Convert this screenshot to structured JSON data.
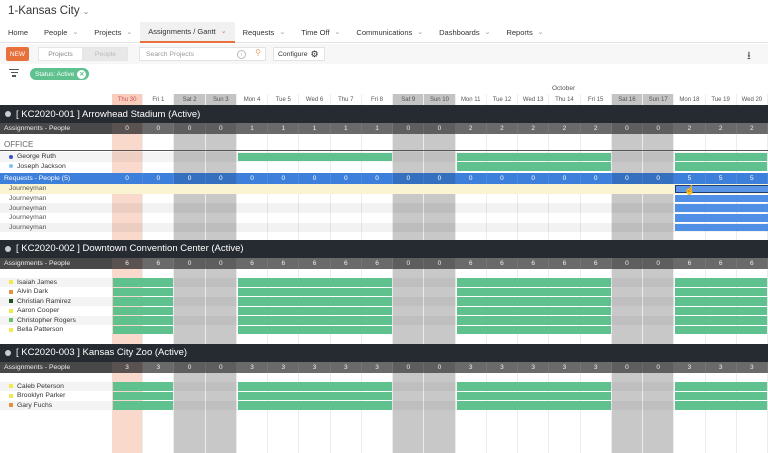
{
  "app": {
    "title": "1-Kansas City",
    "title_chevron": "⌄"
  },
  "nav": {
    "items": [
      {
        "label": "Home",
        "chevron": false
      },
      {
        "label": "People",
        "chevron": true
      },
      {
        "label": "Projects",
        "chevron": true
      },
      {
        "label": "Assignments / Gantt",
        "chevron": true,
        "active": true
      },
      {
        "label": "Requests",
        "chevron": true
      },
      {
        "label": "Time Off",
        "chevron": true
      },
      {
        "label": "Communications",
        "chevron": true
      },
      {
        "label": "Dashboards",
        "chevron": true
      },
      {
        "label": "Reports",
        "chevron": true
      }
    ]
  },
  "toolbar": {
    "new_label": "NEW",
    "view_projects": "Projects",
    "view_people": "People",
    "search_placeholder": "Search Projects",
    "configure_label": "Configure",
    "icons": {
      "help": "help-circle-icon",
      "search": "search-icon",
      "gear": "gear-icon",
      "download": "download-icon"
    }
  },
  "filter": {
    "chip_label": "Status: Active",
    "icon": "filter-icon"
  },
  "colors": {
    "accent": "#e8703a",
    "green": "#5ec18e",
    "blue": "#3d80db",
    "project_header": "#262a31",
    "today": "#f8d3c5",
    "weekend": "#c4c4c4"
  },
  "calendar": {
    "month": "October",
    "days": [
      {
        "label": "Thu 30",
        "type": "today"
      },
      {
        "label": "Fri 1",
        "type": "weekday"
      },
      {
        "label": "Sat 2",
        "type": "weekend"
      },
      {
        "label": "Sun 3",
        "type": "weekend"
      },
      {
        "label": "Mon 4",
        "type": "weekday"
      },
      {
        "label": "Tue 5",
        "type": "weekday"
      },
      {
        "label": "Wed 6",
        "type": "weekday"
      },
      {
        "label": "Thu 7",
        "type": "weekday"
      },
      {
        "label": "Fri 8",
        "type": "weekday"
      },
      {
        "label": "Sat 9",
        "type": "weekend"
      },
      {
        "label": "Sun 10",
        "type": "weekend"
      },
      {
        "label": "Mon 11",
        "type": "weekday"
      },
      {
        "label": "Tue 12",
        "type": "weekday"
      },
      {
        "label": "Wed 13",
        "type": "weekday"
      },
      {
        "label": "Thu 14",
        "type": "weekday"
      },
      {
        "label": "Fri 15",
        "type": "weekday"
      },
      {
        "label": "Sat 16",
        "type": "weekend"
      },
      {
        "label": "Sun 17",
        "type": "weekend"
      },
      {
        "label": "Mon 18",
        "type": "weekday"
      },
      {
        "label": "Tue 19",
        "type": "weekday"
      },
      {
        "label": "Wed 20",
        "type": "weekday"
      }
    ]
  },
  "projects": [
    {
      "title": "[ KC2020-001 ] Arrowhead Stadium (Active)",
      "assignments_label": "Assignments - People",
      "counts": [
        "0",
        "0",
        "0",
        "0",
        "1",
        "1",
        "1",
        "1",
        "1",
        "0",
        "0",
        "2",
        "2",
        "2",
        "2",
        "2",
        "0",
        "0",
        "2",
        "2",
        "2"
      ],
      "group_label": "OFFICE",
      "people": [
        {
          "name": "George Ruth",
          "color": "#3b4fc8",
          "bars": [
            [
              4,
              8
            ],
            [
              11,
              15
            ],
            [
              18,
              20
            ]
          ]
        },
        {
          "name": "Joseph Jackson",
          "color": "#7cc6ee",
          "bars": [
            [
              11,
              15
            ],
            [
              18,
              20
            ]
          ]
        }
      ],
      "requests": {
        "label": "Requests - People (5)",
        "counts": [
          "0",
          "0",
          "0",
          "0",
          "0",
          "0",
          "0",
          "0",
          "0",
          "0",
          "0",
          "0",
          "0",
          "0",
          "0",
          "0",
          "0",
          "0",
          "5",
          "5",
          "5"
        ],
        "rows": [
          "Journeyman",
          "Journeyman",
          "Journeyman",
          "Journeyman",
          "Journeyman"
        ]
      }
    },
    {
      "title": "[ KC2020-002 ] Downtown Convention Center (Active)",
      "assignments_label": "Assignments - People",
      "counts": [
        "6",
        "6",
        "0",
        "0",
        "6",
        "6",
        "6",
        "6",
        "6",
        "0",
        "0",
        "6",
        "6",
        "6",
        "6",
        "6",
        "0",
        "0",
        "6",
        "6",
        "6"
      ],
      "people": [
        {
          "name": "Isaiah James",
          "color": "#f0ea4a"
        },
        {
          "name": "Alvin Dark",
          "color": "#e8903a"
        },
        {
          "name": "Christian Ramirez",
          "color": "#1e4d1e"
        },
        {
          "name": "Aaron Cooper",
          "color": "#f0ea4a"
        },
        {
          "name": "Christopher Rogers",
          "color": "#6cbf6c"
        },
        {
          "name": "Bella Patterson",
          "color": "#f0ea4a"
        }
      ]
    },
    {
      "title": "[ KC2020-003 ] Kansas City Zoo (Active)",
      "assignments_label": "Assignments - People",
      "counts": [
        "3",
        "3",
        "0",
        "0",
        "3",
        "3",
        "3",
        "3",
        "3",
        "0",
        "0",
        "3",
        "3",
        "3",
        "3",
        "3",
        "0",
        "0",
        "3",
        "3",
        "3"
      ],
      "people": [
        {
          "name": "Caleb Peterson",
          "color": "#f0ea4a"
        },
        {
          "name": "Brooklyn Parker",
          "color": "#f0ea4a"
        },
        {
          "name": "Gary Fuchs",
          "color": "#e8903a"
        }
      ]
    }
  ]
}
